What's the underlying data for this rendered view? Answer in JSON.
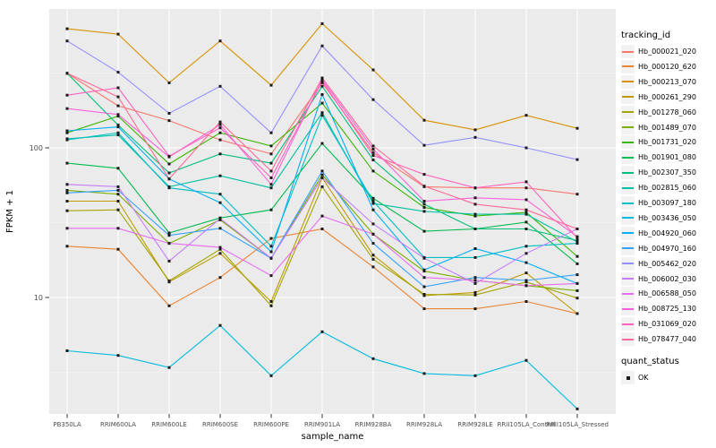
{
  "chart_data": {
    "type": "line",
    "title": "",
    "xlabel": "sample_name",
    "ylabel": "FPKM + 1",
    "y_scale": "log10",
    "ylim": [
      1.6,
      900
    ],
    "y_ticks": [
      10,
      100
    ],
    "y_minor_ticks": [
      3.162,
      31.62,
      316.2
    ],
    "grid": true,
    "panel_bg": "#EBEBEB",
    "grid_color": "#FFFFFF",
    "axis_text_color": "#4D4D4D",
    "point_color": "#1a1a1a",
    "point_shape": "square",
    "legend_position": "right",
    "categories": [
      "PB350LA",
      "RRIM600LA",
      "RRIM600LE",
      "RRIM600SE",
      "RRIM600PE",
      "RRIM901LA",
      "RRIM928BA",
      "RRIM928LA",
      "RRIM928LE",
      "RRII105LA_Control",
      "RRII105LA_Stressed"
    ],
    "series": [
      {
        "name": "Hb_000021_020",
        "color": "#F8766D",
        "values": [
          315,
          191,
          152,
          113,
          91,
          272,
          93,
          55,
          54,
          54,
          49
        ]
      },
      {
        "name": "Hb_000120_620",
        "color": "#EA8331",
        "values": [
          22,
          21,
          8.8,
          13.6,
          24.8,
          28.7,
          16,
          8.4,
          8.4,
          9.4,
          7.8
        ]
      },
      {
        "name": "Hb_000213_070",
        "color": "#D89000",
        "values": [
          625,
          575,
          272,
          518,
          262,
          676,
          332,
          153,
          132,
          165,
          135
        ]
      },
      {
        "name": "Hb_000261_290",
        "color": "#C09B00",
        "values": [
          44,
          44,
          12.7,
          19.7,
          9.4,
          63,
          19.2,
          10.3,
          10.8,
          14.6,
          7.8
        ]
      },
      {
        "name": "Hb_001278_060",
        "color": "#A3A500",
        "values": [
          38,
          38.5,
          12.9,
          21,
          8.8,
          55,
          18,
          10.5,
          10.4,
          12.7,
          9.9
        ]
      },
      {
        "name": "Hb_001489_070",
        "color": "#7CAE00",
        "values": [
          52,
          49,
          23,
          33,
          18.3,
          66,
          26.5,
          15,
          13,
          12,
          11.1
        ]
      },
      {
        "name": "Hb_001731_020",
        "color": "#39B600",
        "values": [
          126,
          163,
          78,
          126,
          103,
          199,
          70,
          40,
          35,
          37,
          18.8
        ]
      },
      {
        "name": "Hb_001901_080",
        "color": "#00BB4E",
        "values": [
          79,
          73,
          27,
          34,
          38.5,
          107,
          46,
          27.7,
          28.7,
          31.9,
          16.8
        ]
      },
      {
        "name": "Hb_002307_350",
        "color": "#00BF7D",
        "values": [
          315,
          142,
          68,
          91,
          79,
          258,
          83,
          42,
          28.7,
          28.7,
          24
        ]
      },
      {
        "name": "Hb_002815_060",
        "color": "#00C1A3",
        "values": [
          115,
          122,
          55,
          65,
          54,
          172,
          42.5,
          37.6,
          36,
          36,
          23.5
        ]
      },
      {
        "name": "Hb_003097_180",
        "color": "#00BFC4",
        "values": [
          113,
          126,
          54,
          49,
          22,
          165,
          44,
          18.5,
          18.5,
          22,
          23
        ]
      },
      {
        "name": "Hb_003436_050",
        "color": "#00BAE0",
        "values": [
          4.4,
          4.1,
          3.4,
          6.5,
          3.0,
          5.9,
          3.9,
          3.1,
          3.0,
          3.8,
          1.8
        ]
      },
      {
        "name": "Hb_004920_060",
        "color": "#00B0F6",
        "values": [
          130,
          138,
          62,
          43,
          20.2,
          227,
          38.5,
          15.3,
          21.2,
          17.1,
          12.4
        ]
      },
      {
        "name": "Hb_004970_160",
        "color": "#35A2FF",
        "values": [
          50,
          52,
          26,
          29,
          18.3,
          70,
          23,
          11.8,
          13.6,
          13,
          14.2
        ]
      },
      {
        "name": "Hb_005462_020",
        "color": "#9590FF",
        "values": [
          518,
          320,
          170,
          258,
          126,
          480,
          210,
          104,
          117.5,
          100,
          83.5
        ]
      },
      {
        "name": "Hb_006002_030",
        "color": "#C77CFF",
        "values": [
          57,
          55,
          17.5,
          33.7,
          18.3,
          63,
          31,
          18.3,
          12.4,
          19.7,
          28.7
        ]
      },
      {
        "name": "Hb_006588_050",
        "color": "#E76BF3",
        "values": [
          29,
          29,
          23,
          21.6,
          14,
          35,
          26.5,
          13.6,
          13,
          12,
          12.4
        ]
      },
      {
        "name": "Hb_008725_130",
        "color": "#FA62DB",
        "values": [
          183,
          167,
          87,
          143,
          57,
          285,
          98,
          44,
          46.3,
          45,
          25.5
        ]
      },
      {
        "name": "Hb_031069_020",
        "color": "#FF62BC",
        "values": [
          225,
          252,
          88,
          136,
          63,
          278,
          89,
          66.5,
          54,
          59.3,
          25
        ]
      },
      {
        "name": "Hb_078477_040",
        "color": "#FF6A98",
        "values": [
          315,
          219,
          62,
          149,
          70,
          293,
          103,
          55.5,
          42,
          38.5,
          28.7
        ]
      }
    ],
    "legend": {
      "tracking_title": "tracking_id",
      "quant_title": "quant_status",
      "quant_items": [
        {
          "label": "OK"
        }
      ]
    }
  }
}
